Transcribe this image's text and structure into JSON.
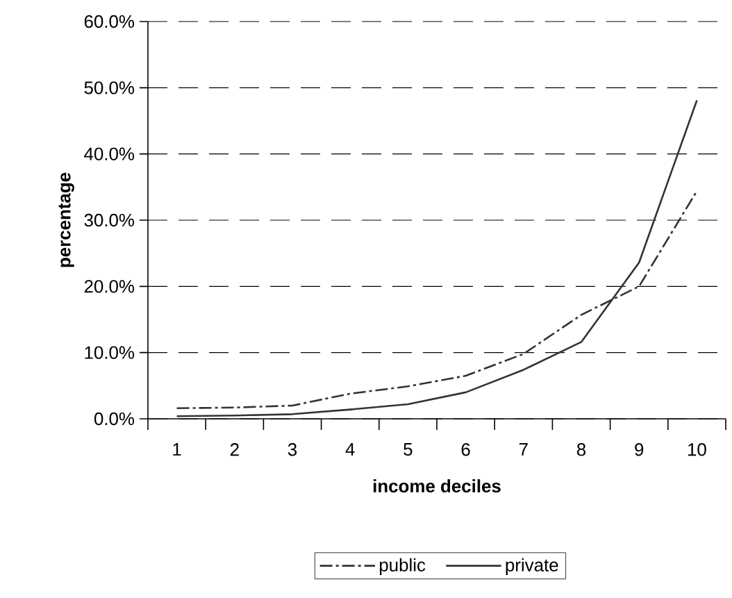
{
  "chart_data": {
    "type": "line",
    "xlabel": "income deciles",
    "ylabel": "percentage",
    "categories": [
      "1",
      "2",
      "3",
      "4",
      "5",
      "6",
      "7",
      "8",
      "9",
      "10"
    ],
    "series": [
      {
        "name": "public",
        "color": "#333333",
        "line_style": "dashdot",
        "values": [
          1.6,
          1.7,
          2.0,
          3.8,
          4.9,
          6.5,
          9.8,
          15.7,
          20.0,
          34.4
        ]
      },
      {
        "name": "private",
        "color": "#333333",
        "line_style": "solid",
        "values": [
          0.4,
          0.5,
          0.7,
          1.4,
          2.2,
          4.0,
          7.4,
          11.6,
          23.6,
          48.1
        ]
      }
    ],
    "ylim": [
      0,
      60
    ],
    "yticks": [
      {
        "value": 0,
        "label": "0.0%"
      },
      {
        "value": 10,
        "label": "10.0%"
      },
      {
        "value": 20,
        "label": "20.0%"
      },
      {
        "value": 30,
        "label": "30.0%"
      },
      {
        "value": 40,
        "label": "40.0%"
      },
      {
        "value": 50,
        "label": "50.0%"
      },
      {
        "value": 60,
        "label": "60.0%"
      }
    ],
    "grid": "y",
    "legend": "bottom",
    "marker": "none"
  }
}
